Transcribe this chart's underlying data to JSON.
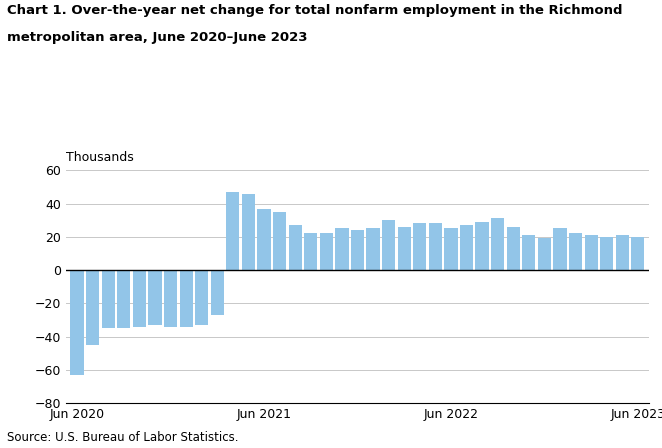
{
  "title_line1": "Chart 1. Over-the-year net change for total nonfarm employment in the Richmond",
  "title_line2": "metropolitan area, June 2020–June 2023",
  "ylabel": "Thousands",
  "source": "Source: U.S. Bureau of Labor Statistics.",
  "bar_color": "#92C5E8",
  "ylim": [
    -80,
    60
  ],
  "yticks": [
    -80,
    -60,
    -40,
    -20,
    0,
    20,
    40,
    60
  ],
  "values": [
    -63,
    -45,
    -35,
    -35,
    -34,
    -33,
    -34,
    -34,
    -33,
    -27,
    47,
    46,
    37,
    35,
    27,
    22,
    22,
    25,
    24,
    25,
    30,
    26,
    28,
    28,
    25,
    27,
    29,
    31,
    26,
    21,
    19,
    25,
    22,
    21,
    20,
    21,
    20
  ],
  "x_tick_labels_show": [
    0,
    12,
    24,
    36
  ],
  "x_tick_labels_show_names": [
    "Jun 2020",
    "Jun 2021",
    "Jun 2022",
    "Jun 2023"
  ]
}
